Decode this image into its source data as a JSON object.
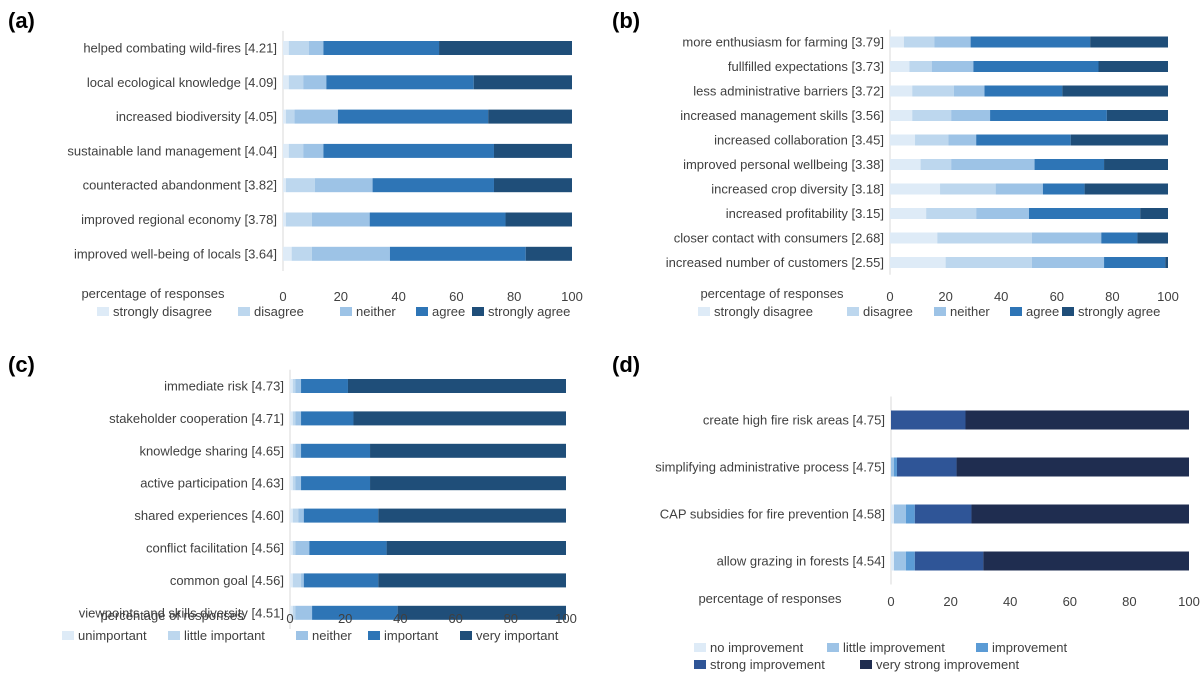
{
  "chart_data": [
    {
      "panel": "(a)",
      "type": "bar",
      "stacked": true,
      "orientation": "horizontal",
      "categories": [
        "helped combating wild-fires [4.21]",
        "local ecological knowledge [4.09]",
        "increased biodiversity [4.05]",
        "sustainable land management [4.04]",
        "counteracted abandonment [3.82]",
        "improved regional economy [3.78]",
        "improved well-being of locals [3.64]"
      ],
      "series": [
        {
          "name": "strongly disagree",
          "color": "#deebf7",
          "values": [
            2,
            2,
            1,
            2,
            1,
            1,
            3
          ]
        },
        {
          "name": "disagree",
          "color": "#bdd7ee",
          "values": [
            7,
            5,
            3,
            5,
            10,
            9,
            7
          ]
        },
        {
          "name": "neither",
          "color": "#9dc3e6",
          "values": [
            5,
            8,
            15,
            7,
            20,
            20,
            27
          ]
        },
        {
          "name": "agree",
          "color": "#2e75b6",
          "values": [
            40,
            51,
            52,
            59,
            42,
            47,
            47
          ]
        },
        {
          "name": "strongly agree",
          "color": "#1f4e79",
          "values": [
            46,
            34,
            29,
            27,
            27,
            23,
            16
          ]
        }
      ],
      "xlabel": "percentage of responses",
      "xlim": [
        0,
        100
      ],
      "xticks": [
        "0",
        "20",
        "40",
        "60",
        "80",
        "100"
      ],
      "legend": "bottom"
    },
    {
      "panel": "(b)",
      "type": "bar",
      "stacked": true,
      "orientation": "horizontal",
      "categories": [
        "more enthusiasm for farming [3.79]",
        "fullfilled expectations [3.73]",
        "less administrative barriers [3.72]",
        "increased management skills [3.56]",
        "increased collaboration [3.45]",
        "improved personal wellbeing [3.38]",
        "increased crop diversity [3.18]",
        "increased profitability [3.15]",
        "closer contact with consumers [2.68]",
        "increased number of customers [2.55]"
      ],
      "series": [
        {
          "name": "strongly disagree",
          "color": "#deebf7",
          "values": [
            5,
            7,
            8,
            8,
            9,
            11,
            18,
            13,
            17,
            20
          ]
        },
        {
          "name": "disagree",
          "color": "#bdd7ee",
          "values": [
            11,
            8,
            15,
            14,
            12,
            11,
            20,
            18,
            34,
            31
          ]
        },
        {
          "name": "neither",
          "color": "#9dc3e6",
          "values": [
            13,
            15,
            11,
            14,
            10,
            30,
            17,
            19,
            25,
            26
          ]
        },
        {
          "name": "agree",
          "color": "#2e75b6",
          "values": [
            43,
            45,
            28,
            42,
            34,
            25,
            15,
            40,
            13,
            22
          ]
        },
        {
          "name": "strongly agree",
          "color": "#1f4e79",
          "values": [
            28,
            25,
            38,
            22,
            35,
            23,
            30,
            10,
            11,
            1
          ]
        }
      ],
      "xlabel": "percentage of responses",
      "xlim": [
        0,
        100
      ],
      "xticks": [
        "0",
        "20",
        "40",
        "60",
        "80",
        "100"
      ],
      "legend": "bottom"
    },
    {
      "panel": "(c)",
      "type": "bar",
      "stacked": true,
      "orientation": "horizontal",
      "categories": [
        "immediate risk [4.73]",
        "stakeholder cooperation [4.71]",
        "knowledge sharing [4.65]",
        "active participation [4.63]",
        "shared experiences [4.60]",
        "conflict facilitation [4.56]",
        "common goal [4.56]",
        "viewpoints and skills diversity [4.51]"
      ],
      "series": [
        {
          "name": "unimportant",
          "color": "#deebf7",
          "values": [
            1,
            1,
            1,
            1,
            1,
            1,
            1,
            1
          ]
        },
        {
          "name": "little important",
          "color": "#bdd7ee",
          "values": [
            1,
            1,
            1,
            1,
            2,
            1,
            3,
            1
          ]
        },
        {
          "name": "neither",
          "color": "#9dc3e6",
          "values": [
            2,
            2,
            2,
            2,
            2,
            5,
            1,
            6
          ]
        },
        {
          "name": "important",
          "color": "#2e75b6",
          "values": [
            17,
            19,
            25,
            25,
            27,
            28,
            27,
            31
          ]
        },
        {
          "name": "very important",
          "color": "#1f4e79",
          "values": [
            79,
            77,
            71,
            71,
            68,
            65,
            68,
            61
          ]
        }
      ],
      "xlabel": "percentage of responses",
      "xlim": [
        0,
        100
      ],
      "xticks": [
        "0",
        "20",
        "40",
        "60",
        "80",
        "100"
      ],
      "legend": "bottom"
    },
    {
      "panel": "(d)",
      "type": "bar",
      "stacked": true,
      "orientation": "horizontal",
      "categories": [
        "create high fire risk areas [4.75]",
        "simplifying administrative process [4.75]",
        "CAP subsidies for fire prevention [4.58]",
        "allow grazing in forests [4.54]"
      ],
      "series": [
        {
          "name": "no improvement",
          "color": "#deebf7",
          "values": [
            0,
            0,
            1,
            1
          ]
        },
        {
          "name": "little improvement",
          "color": "#9dc3e6",
          "values": [
            0,
            1,
            4,
            4
          ]
        },
        {
          "name": "improvement",
          "color": "#5b9bd5",
          "values": [
            0,
            1,
            3,
            3
          ]
        },
        {
          "name": "strong improvement",
          "color": "#2f5597",
          "values": [
            25,
            20,
            19,
            23
          ]
        },
        {
          "name": "very strong improvement",
          "color": "#1f2d50",
          "values": [
            75,
            78,
            73,
            69
          ]
        }
      ],
      "xlabel": "percentage of responses",
      "xlim": [
        0,
        100
      ],
      "xticks": [
        "0",
        "20",
        "40",
        "60",
        "80",
        "100"
      ],
      "legend": "bottom"
    }
  ]
}
